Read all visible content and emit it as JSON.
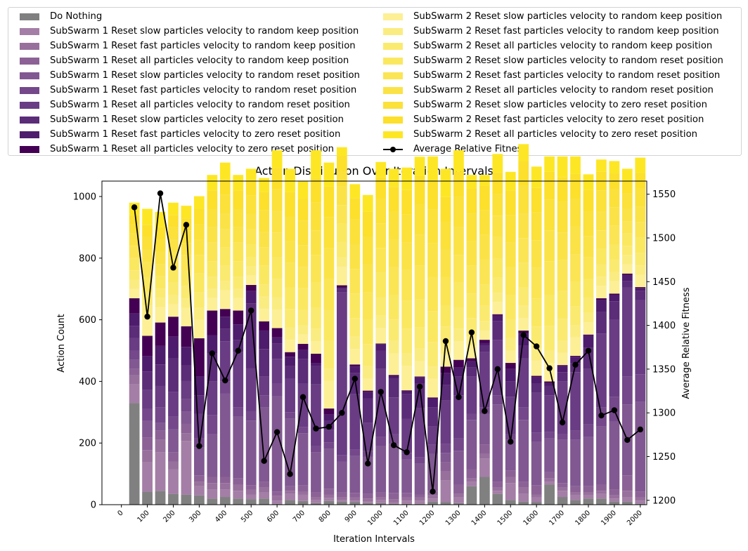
{
  "chart_data": {
    "type": "bar",
    "title": "Action Distribution Over Iteration Intervals",
    "xlabel": "Iteration Intervals",
    "ylabel": "Action Count",
    "y2label": "Average Relative Fitness",
    "ylim": [
      0,
      1050
    ],
    "y2lim": [
      1195,
      1565
    ],
    "yticks": [
      0,
      200,
      400,
      600,
      800,
      1000
    ],
    "y2ticks": [
      1200,
      1250,
      1300,
      1350,
      1400,
      1450,
      1500,
      1550
    ],
    "xticks": [
      "0",
      "100",
      "200",
      "300",
      "400",
      "500",
      "600",
      "700",
      "800",
      "900",
      "1000",
      "1100",
      "1200",
      "1300",
      "1400",
      "1500",
      "1600",
      "1700",
      "1800",
      "1900",
      "2000"
    ],
    "legend_position": "above plot, two columns",
    "grid": false,
    "x": [
      50,
      100,
      150,
      200,
      250,
      300,
      350,
      400,
      450,
      500,
      550,
      600,
      650,
      700,
      750,
      800,
      850,
      900,
      950,
      1000,
      1050,
      1100,
      1150,
      1200,
      1250,
      1300,
      1350,
      1400,
      1450,
      1500,
      1550,
      1600,
      1650,
      1700,
      1750,
      1800,
      1850,
      1900,
      1950,
      2000
    ],
    "series": [
      {
        "name": "Do Nothing",
        "color": "#808080",
        "values": [
          330,
          42,
          45,
          35,
          32,
          30,
          20,
          25,
          20,
          18,
          20,
          3,
          15,
          12,
          5,
          12,
          10,
          8,
          5,
          5,
          3,
          3,
          3,
          10,
          8,
          5,
          60,
          90,
          35,
          15,
          10,
          8,
          65,
          25,
          15,
          20,
          20,
          10,
          10,
          3
        ]
      },
      {
        "name": "SubSwarm 1 Reset slow particles velocity to random keep position",
        "color": "#a47ea6",
        "values": [
          60,
          95,
          125,
          80,
          175,
          30,
          30,
          25,
          25,
          15,
          20,
          10,
          20,
          20,
          10,
          10,
          5,
          5,
          5,
          10,
          5,
          10,
          10,
          10,
          70,
          20,
          15,
          60,
          10,
          55,
          25,
          15,
          10,
          20,
          15,
          10,
          15,
          10,
          15,
          10
        ]
      },
      {
        "name": "SubSwarm 1 Reset fast particles velocity to random keep position",
        "color": "#98709c",
        "values": [
          30,
          40,
          40,
          25,
          25,
          15,
          20,
          20,
          20,
          15,
          15,
          15,
          10,
          10,
          10,
          10,
          10,
          10,
          10,
          10,
          10,
          10,
          10,
          10,
          30,
          10,
          10,
          15,
          10,
          20,
          20,
          10,
          10,
          10,
          10,
          10,
          10,
          10,
          20,
          10
        ]
      },
      {
        "name": "SubSwarm 1 Reset all particles velocity to random keep position",
        "color": "#8c6296",
        "values": [
          20,
          40,
          30,
          30,
          30,
          20,
          20,
          20,
          20,
          15,
          20,
          15,
          15,
          20,
          15,
          20,
          15,
          15,
          15,
          15,
          20,
          15,
          10,
          15,
          30,
          30,
          30,
          30,
          20,
          20,
          20,
          30,
          20,
          15,
          20,
          20,
          20,
          20,
          50,
          20
        ]
      },
      {
        "name": "SubSwarm 1 Reset slow particles velocity to random reset position",
        "color": "#815892",
        "values": [
          30,
          55,
          25,
          75,
          40,
          90,
          140,
          270,
          200,
          210,
          240,
          310,
          220,
          170,
          130,
          130,
          100,
          120,
          120,
          150,
          160,
          110,
          100,
          120,
          30,
          110,
          160,
          100,
          250,
          100,
          200,
          140,
          110,
          140,
          150,
          160,
          190,
          220,
          230,
          290
        ]
      },
      {
        "name": "SubSwarm 1 Reset fast particles velocity to random reset position",
        "color": "#74488a",
        "values": [
          30,
          40,
          50,
          40,
          40,
          30,
          60,
          40,
          30,
          30,
          40,
          40,
          20,
          20,
          20,
          20,
          20,
          20,
          20,
          30,
          30,
          20,
          20,
          30,
          30,
          40,
          20,
          20,
          30,
          20,
          40,
          30,
          20,
          20,
          30,
          40,
          60,
          80,
          90,
          90
        ]
      },
      {
        "name": "SubSwarm 1 Reset all particles velocity to random reset position",
        "color": "#693c84",
        "values": [
          40,
          60,
          70,
          80,
          60,
          80,
          110,
          130,
          180,
          140,
          60,
          80,
          110,
          140,
          200,
          40,
          530,
          180,
          90,
          220,
          120,
          110,
          160,
          60,
          140,
          140,
          120,
          180,
          180,
          120,
          160,
          130,
          120,
          170,
          190,
          180,
          240,
          250,
          290,
          240
        ]
      },
      {
        "name": "SubSwarm 1 Reset slow particles velocity to zero reset position",
        "color": "#5b2c78",
        "values": [
          40,
          60,
          70,
          110,
          50,
          60,
          90,
          40,
          40,
          210,
          90,
          50,
          40,
          80,
          60,
          30,
          10,
          70,
          80,
          60,
          60,
          80,
          80,
          60,
          50,
          60,
          30,
          20,
          60,
          50,
          40,
          30,
          30,
          30,
          30,
          70,
          70,
          60,
          20,
          30
        ]
      },
      {
        "name": "SubSwarm 1 Reset fast particles velocity to zero reset position",
        "color": "#4e1c6c",
        "values": [
          40,
          50,
          60,
          70,
          60,
          60,
          60,
          40,
          50,
          40,
          60,
          20,
          30,
          30,
          10,
          20,
          5,
          20,
          20,
          20,
          10,
          10,
          20,
          30,
          40,
          30,
          20,
          10,
          20,
          40,
          40,
          20,
          10,
          20,
          20,
          40,
          40,
          20,
          20,
          10
        ]
      },
      {
        "name": "SubSwarm 1 Reset all particles velocity to zero reset position",
        "color": "#440154",
        "values": [
          50,
          66,
          76,
          65,
          67,
          125,
          80,
          25,
          45,
          20,
          30,
          30,
          15,
          20,
          30,
          20,
          7,
          7,
          5,
          3,
          3,
          3,
          3,
          3,
          20,
          25,
          10,
          10,
          3,
          20,
          10,
          5,
          5,
          3,
          3,
          2,
          5,
          5,
          5,
          3
        ]
      },
      {
        "name": "SubSwarm 2 Reset slow particles velocity to random keep position",
        "color": "#fcef96",
        "values": [
          30,
          60,
          50,
          40,
          60,
          60,
          40,
          60,
          40,
          30,
          40,
          60,
          40,
          30,
          40,
          90,
          60,
          50,
          40,
          50,
          70,
          80,
          50,
          60,
          40,
          60,
          40,
          30,
          40,
          40,
          40,
          50,
          60,
          40,
          60,
          40,
          40,
          40,
          30,
          40
        ]
      },
      {
        "name": "SubSwarm 2 Reset fast particles velocity to random keep position",
        "color": "#fbec82",
        "values": [
          30,
          40,
          30,
          30,
          30,
          40,
          30,
          30,
          30,
          30,
          40,
          40,
          40,
          30,
          40,
          40,
          30,
          40,
          40,
          40,
          40,
          40,
          40,
          40,
          30,
          40,
          30,
          30,
          30,
          40,
          40,
          40,
          40,
          40,
          40,
          30,
          30,
          30,
          30,
          30
        ]
      },
      {
        "name": "SubSwarm 2 Reset all particles velocity to random keep position",
        "color": "#fbea70",
        "values": [
          30,
          40,
          30,
          40,
          40,
          50,
          40,
          50,
          40,
          30,
          40,
          60,
          60,
          50,
          70,
          90,
          50,
          60,
          70,
          60,
          70,
          80,
          70,
          80,
          60,
          70,
          60,
          50,
          50,
          60,
          60,
          70,
          80,
          70,
          60,
          50,
          40,
          40,
          30,
          40
        ]
      },
      {
        "name": "SubSwarm 2 Reset slow particles velocity to random reset position",
        "color": "#fbe861",
        "values": [
          40,
          50,
          40,
          50,
          50,
          60,
          50,
          60,
          50,
          40,
          60,
          70,
          70,
          70,
          80,
          100,
          60,
          80,
          80,
          80,
          80,
          90,
          90,
          100,
          70,
          80,
          80,
          70,
          60,
          80,
          80,
          90,
          100,
          90,
          80,
          60,
          50,
          50,
          40,
          50
        ]
      },
      {
        "name": "SubSwarm 2 Reset fast particles velocity to random reset position",
        "color": "#fbe554",
        "values": [
          40,
          50,
          40,
          50,
          50,
          60,
          60,
          60,
          60,
          50,
          60,
          80,
          80,
          70,
          90,
          100,
          60,
          80,
          90,
          80,
          90,
          100,
          110,
          110,
          90,
          90,
          90,
          80,
          70,
          90,
          80,
          100,
          110,
          100,
          90,
          70,
          60,
          60,
          40,
          50
        ]
      },
      {
        "name": "SubSwarm 2 Reset all particles velocity to random reset position",
        "color": "#fbe347",
        "values": [
          40,
          40,
          40,
          40,
          40,
          50,
          50,
          50,
          50,
          50,
          50,
          70,
          70,
          70,
          80,
          100,
          60,
          80,
          90,
          80,
          90,
          90,
          100,
          110,
          90,
          90,
          80,
          80,
          70,
          80,
          80,
          90,
          100,
          90,
          90,
          70,
          60,
          60,
          40,
          50
        ]
      },
      {
        "name": "SubSwarm 2 Reset slow particles velocity to zero reset position",
        "color": "#fbe13a",
        "values": [
          30,
          40,
          40,
          40,
          40,
          50,
          60,
          60,
          60,
          60,
          70,
          70,
          80,
          80,
          90,
          100,
          50,
          80,
          90,
          80,
          90,
          90,
          100,
          110,
          90,
          100,
          90,
          80,
          70,
          90,
          90,
          90,
          100,
          100,
          90,
          80,
          70,
          60,
          50,
          60
        ]
      },
      {
        "name": "SubSwarm 2 Reset fast particles velocity to zero reset position",
        "color": "#fce02c",
        "values": [
          30,
          40,
          40,
          40,
          40,
          50,
          60,
          50,
          60,
          50,
          60,
          70,
          80,
          70,
          80,
          100,
          50,
          70,
          80,
          70,
          80,
          80,
          90,
          90,
          80,
          80,
          80,
          80,
          70,
          80,
          80,
          80,
          90,
          80,
          80,
          70,
          60,
          50,
          40,
          50
        ]
      },
      {
        "name": "SubSwarm 2 Reset all particles velocity to zero reset position",
        "color": "#fde725",
        "values": [
          40,
          52,
          49,
          40,
          41,
          41,
          50,
          55,
          50,
          37,
          45,
          57,
          75,
          58,
          90,
          78,
          28,
          45,
          55,
          49,
          59,
          73,
          63,
          82,
          92,
          70,
          45,
          35,
          60,
          60,
          55,
          69,
          50,
          67,
          57,
          50,
          40,
          40,
          40,
          50
        ]
      }
    ],
    "line": {
      "name": "Average Relative Fitness",
      "color": "#000000",
      "values": [
        1535,
        1410,
        1551,
        1466,
        1515,
        1262,
        1368,
        1337,
        1371,
        1417,
        1245,
        1278,
        1230,
        1318,
        1282,
        1284,
        1300,
        1339,
        1242,
        1324,
        1263,
        1255,
        1330,
        1210,
        1382,
        1318,
        1392,
        1302,
        1350,
        1267,
        1389,
        1376,
        1351,
        1289,
        1355,
        1371,
        1297,
        1303,
        1269,
        1281
      ]
    }
  }
}
